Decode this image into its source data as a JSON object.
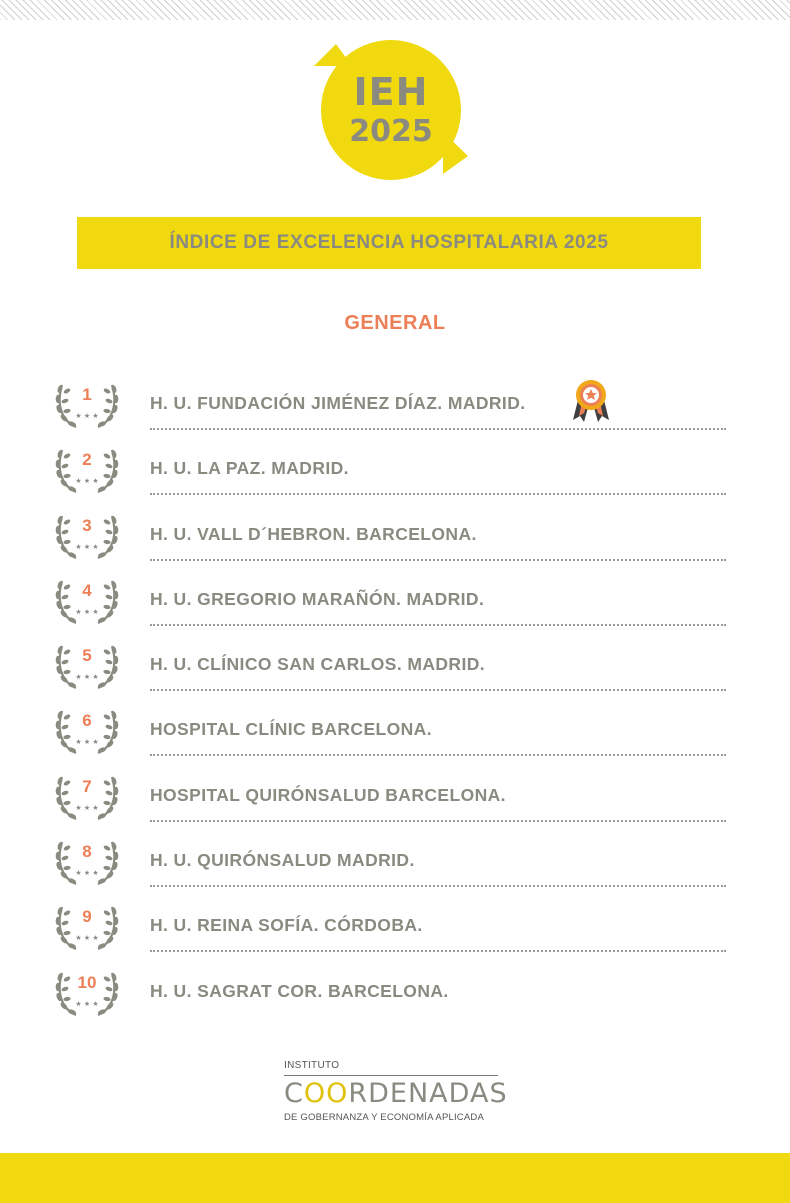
{
  "header": {
    "logo_line1": "IEH",
    "logo_line2": "2025",
    "banner_title": "ÍNDICE DE EXCELENCIA HOSPITALARIA 2025",
    "section_title": "GENERAL"
  },
  "ranking": [
    {
      "rank": "1",
      "name": "H. U. FUNDACIÓN JIMÉNEZ DÍAZ. MADRID.",
      "medal": "award-medal-icon"
    },
    {
      "rank": "2",
      "name": "H. U. LA PAZ. MADRID."
    },
    {
      "rank": "3",
      "name": "H. U. VALL D´HEBRON. BARCELONA."
    },
    {
      "rank": "4",
      "name": "H. U. GREGORIO MARAÑÓN. MADRID."
    },
    {
      "rank": "5",
      "name": "H. U. CLÍNICO SAN CARLOS. MADRID."
    },
    {
      "rank": "6",
      "name": "HOSPITAL CLÍNIC BARCELONA."
    },
    {
      "rank": "7",
      "name": "HOSPITAL QUIRÓNSALUD BARCELONA."
    },
    {
      "rank": "8",
      "name": "H. U. QUIRÓNSALUD MADRID."
    },
    {
      "rank": "9",
      "name": "H. U. REINA SOFÍA. CÓRDOBA."
    },
    {
      "rank": "10",
      "name": "H. U. SAGRAT COR. BARCELONA."
    }
  ],
  "footer": {
    "org_top": "INSTITUTO",
    "org_name_oo": "OO",
    "org_name_prefix": "C",
    "org_name_suffix": "RDENADAS",
    "org_sub": "DE GOBERNANZA Y ECONOMÍA APLICADA"
  },
  "colors": {
    "yellow": "#f0d90e",
    "gray_text": "#8a8a80",
    "coral": "#ec7f56"
  }
}
